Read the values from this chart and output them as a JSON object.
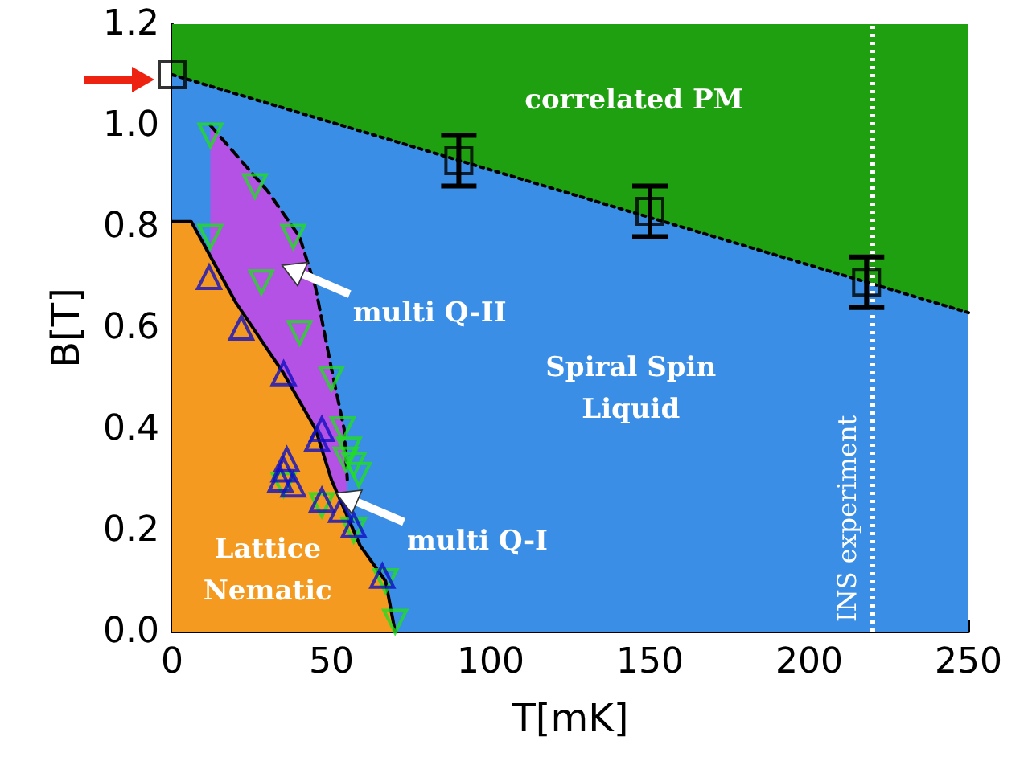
{
  "chart_data": {
    "type": "scatter",
    "xlabel": "T[mK]",
    "ylabel": "B[T]",
    "xlim": [
      0,
      250
    ],
    "xticks": [
      0,
      50,
      100,
      150,
      200,
      250
    ],
    "ylim": [
      0,
      1.2
    ],
    "yticks": [
      {
        "value": 0,
        "label": "0.0"
      },
      0.2,
      0.4,
      0.6,
      0.8,
      {
        "value": 1,
        "label": "1.0"
      },
      1.2
    ],
    "grid": false,
    "series": [
      {
        "type": "area",
        "color": "#1fa010",
        "x": [
          0,
          250
        ],
        "values": [
          1.2,
          1.2
        ]
      },
      {
        "type": "area",
        "color": "#3a8ee6",
        "x": [
          0,
          250
        ],
        "values": [
          1.1,
          0.63
        ],
        "line_style": "dotted"
      },
      {
        "type": "area",
        "color": "#b452e6",
        "x": [
          12,
          30,
          40,
          45,
          50,
          54,
          55
        ],
        "values": [
          1.0,
          0.87,
          0.78,
          0.68,
          0.52,
          0.4,
          0.3
        ],
        "line_style": "dashed"
      },
      {
        "type": "area",
        "color": "#f59a20",
        "x": [
          0,
          6,
          20,
          35,
          45,
          50,
          59,
          67,
          70
        ],
        "values": [
          0.81,
          0.81,
          0.65,
          0.51,
          0.4,
          0.3,
          0.17,
          0.1,
          0
        ],
        "line_style": "solid"
      },
      {
        "color": "#22dd22",
        "marker": "triangle-down",
        "x": [
          12,
          26,
          12,
          38,
          28,
          40,
          50,
          53.5,
          55.5,
          57,
          58.6,
          54.5,
          35,
          47,
          57,
          67,
          70
        ],
        "values": [
          0.98,
          0.88,
          0.78,
          0.78,
          0.69,
          0.59,
          0.5,
          0.4,
          0.36,
          0.33,
          0.31,
          0.34,
          0.29,
          0.25,
          0.2,
          0.1,
          0.02
        ]
      },
      {
        "color": "#1010c0",
        "marker": "triangle",
        "x": [
          11.6,
          21.7,
          35,
          47,
          45.5,
          36,
          35,
          34,
          38,
          47,
          53,
          57,
          66
        ],
        "values": [
          0.7,
          0.6,
          0.51,
          0.4,
          0.38,
          0.34,
          0.32,
          0.3,
          0.29,
          0.26,
          0.24,
          0.21,
          0.11
        ]
      },
      {
        "color": "#000000",
        "marker": "square",
        "x": [
          0,
          90,
          150,
          218
        ],
        "values": [
          1.1,
          0.93,
          0.83,
          0.69
        ],
        "errors": [
          null,
          0.05,
          0.05,
          0.05
        ]
      }
    ],
    "ref_lines": [
      {
        "axis": "x",
        "value": 220,
        "label": "INS experiment",
        "color": "#ffffff",
        "line_style": "dotted"
      }
    ],
    "annotations": [
      "correlated PM",
      "Spiral Spin\nLiquid",
      "Lattice\nNematic",
      "multi Q-II",
      "multi Q-I"
    ]
  }
}
